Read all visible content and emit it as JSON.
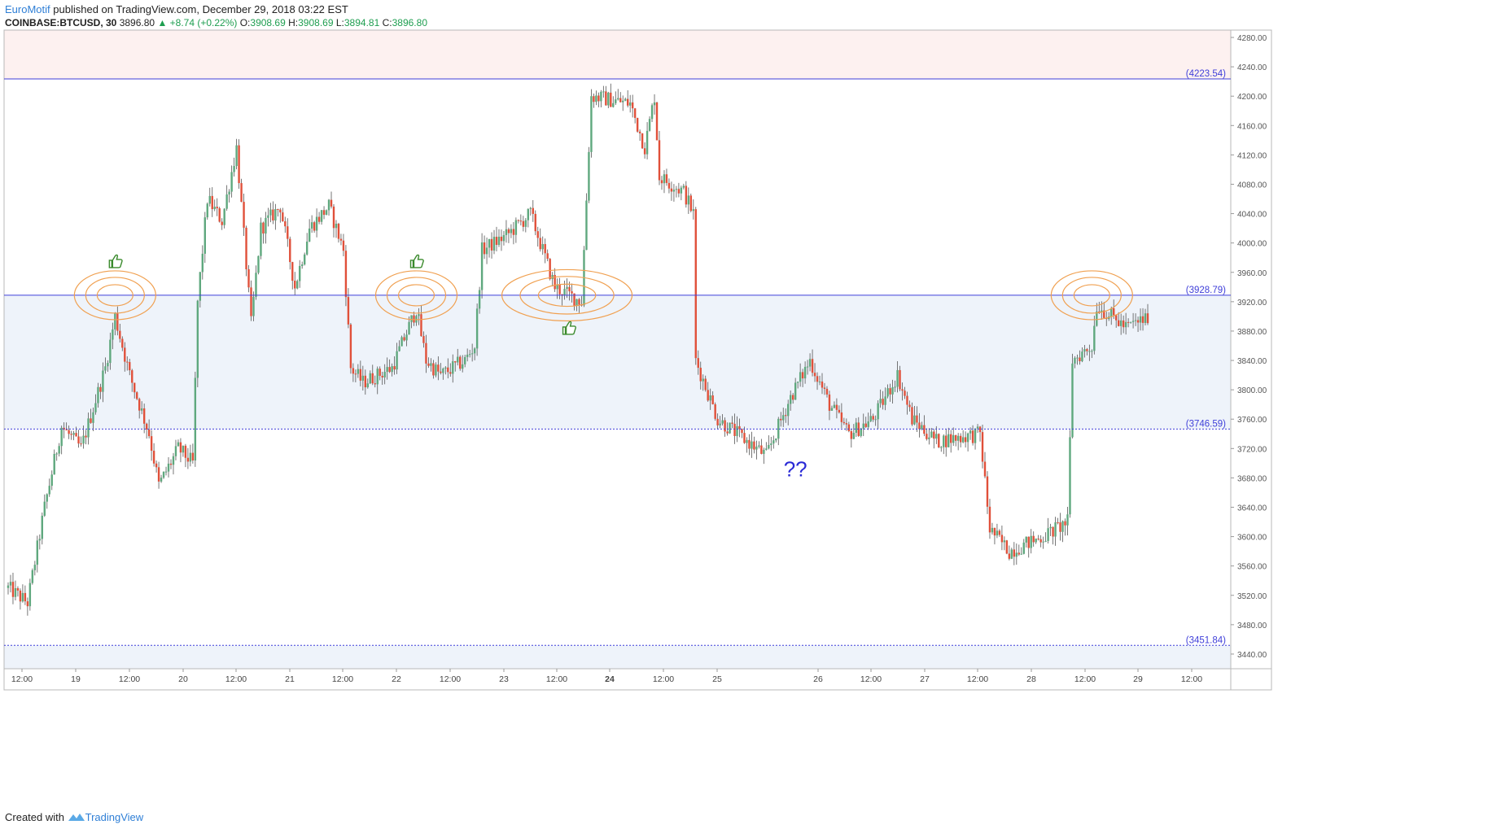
{
  "header": {
    "author": "EuroMotif",
    "published": "published on TradingView.com, December 29, 2018 03:22 EST",
    "symbol": "COINBASE:BTCUSD, 30",
    "last": "3896.80",
    "change": "▲ +8.74 (+0.22%)",
    "o_label": "O:",
    "o_value": "3908.69",
    "h_label": "H:",
    "h_value": "3908.69",
    "l_label": "L:",
    "l_value": "3894.81",
    "c_label": "C:",
    "c_value": "3896.80"
  },
  "footer": {
    "created_with": "Created with",
    "brand": "TradingView"
  },
  "colors": {
    "up": "#5fa87e",
    "down": "#e0503a",
    "level_line": "#3f3fd9",
    "zone_fill": "#eef3fa",
    "top_zone_fill": "#fdf1f0",
    "circle": "#f0a050",
    "thumb": "#3a8a2c"
  },
  "chart_data": {
    "type": "candlestick",
    "symbol": "COINBASE:BTCUSD",
    "interval": "30",
    "ylim": [
      3420,
      4290
    ],
    "y_ticks": [
      "4280.00",
      "4240.00",
      "4200.00",
      "4160.00",
      "4120.00",
      "4080.00",
      "4040.00",
      "4000.00",
      "3960.00",
      "3920.00",
      "3880.00",
      "3840.00",
      "3800.00",
      "3760.00",
      "3720.00",
      "3680.00",
      "3640.00",
      "3600.00",
      "3560.00",
      "3520.00",
      "3480.00",
      "3440.00"
    ],
    "x_ticks": [
      "12:00",
      "19",
      "12:00",
      "20",
      "12:00",
      "21",
      "12:00",
      "22",
      "12:00",
      "23",
      "12:00",
      "24",
      "12:00",
      "25",
      "26",
      "12:00",
      "27",
      "12:00",
      "28",
      "12:00",
      "29",
      "12:00"
    ],
    "x_ticks_bold": [
      "24"
    ],
    "levels": [
      {
        "label": "(4223.54)",
        "value": 4223.54,
        "style": "solid"
      },
      {
        "label": "(3928.79)",
        "value": 3928.79,
        "style": "solid"
      },
      {
        "label": "(3746.59)",
        "value": 3746.59,
        "style": "dotted"
      },
      {
        "label": "(3451.84)",
        "value": 3451.84,
        "style": "dotted"
      }
    ],
    "shaded_zones": [
      {
        "from": 4223.54,
        "to": 4290,
        "color": "top"
      },
      {
        "from": 3746.59,
        "to": 3928.79,
        "color": "zone"
      },
      {
        "from": 3420,
        "to": 3451.84,
        "color": "zone"
      }
    ],
    "path_points": [
      {
        "t": 0,
        "price": 3530
      },
      {
        "t": 8,
        "price": 3510
      },
      {
        "t": 15,
        "price": 3640
      },
      {
        "t": 22,
        "price": 3750
      },
      {
        "t": 30,
        "price": 3720
      },
      {
        "t": 40,
        "price": 3830
      },
      {
        "t": 44,
        "price": 3900
      },
      {
        "t": 50,
        "price": 3820
      },
      {
        "t": 58,
        "price": 3740
      },
      {
        "t": 62,
        "price": 3670
      },
      {
        "t": 70,
        "price": 3720
      },
      {
        "t": 76,
        "price": 3700
      },
      {
        "t": 78,
        "price": 3920
      },
      {
        "t": 82,
        "price": 4060
      },
      {
        "t": 88,
        "price": 4030
      },
      {
        "t": 94,
        "price": 4130
      },
      {
        "t": 100,
        "price": 3890
      },
      {
        "t": 104,
        "price": 4020
      },
      {
        "t": 112,
        "price": 4050
      },
      {
        "t": 118,
        "price": 3940
      },
      {
        "t": 124,
        "price": 4020
      },
      {
        "t": 132,
        "price": 4050
      },
      {
        "t": 138,
        "price": 3990
      },
      {
        "t": 141,
        "price": 3830
      },
      {
        "t": 146,
        "price": 3810
      },
      {
        "t": 158,
        "price": 3830
      },
      {
        "t": 168,
        "price": 3910
      },
      {
        "t": 172,
        "price": 3840
      },
      {
        "t": 178,
        "price": 3820
      },
      {
        "t": 188,
        "price": 3840
      },
      {
        "t": 192,
        "price": 3860
      },
      {
        "t": 195,
        "price": 3990
      },
      {
        "t": 205,
        "price": 4010
      },
      {
        "t": 215,
        "price": 4040
      },
      {
        "t": 225,
        "price": 3940
      },
      {
        "t": 236,
        "price": 3920
      },
      {
        "t": 240,
        "price": 4200
      },
      {
        "t": 256,
        "price": 4190
      },
      {
        "t": 262,
        "price": 4130
      },
      {
        "t": 266,
        "price": 4200
      },
      {
        "t": 268,
        "price": 4090
      },
      {
        "t": 278,
        "price": 4070
      },
      {
        "t": 282,
        "price": 4040
      },
      {
        "t": 283,
        "price": 3840
      },
      {
        "t": 292,
        "price": 3760
      },
      {
        "t": 312,
        "price": 3710
      },
      {
        "t": 322,
        "price": 3790
      },
      {
        "t": 330,
        "price": 3840
      },
      {
        "t": 338,
        "price": 3780
      },
      {
        "t": 346,
        "price": 3740
      },
      {
        "t": 356,
        "price": 3760
      },
      {
        "t": 366,
        "price": 3820
      },
      {
        "t": 372,
        "price": 3760
      },
      {
        "t": 382,
        "price": 3730
      },
      {
        "t": 400,
        "price": 3740
      },
      {
        "t": 404,
        "price": 3610
      },
      {
        "t": 412,
        "price": 3580
      },
      {
        "t": 426,
        "price": 3600
      },
      {
        "t": 436,
        "price": 3620
      },
      {
        "t": 438,
        "price": 3840
      },
      {
        "t": 446,
        "price": 3860
      },
      {
        "t": 448,
        "price": 3915
      },
      {
        "t": 460,
        "price": 3885
      },
      {
        "t": 468,
        "price": 3897
      }
    ],
    "annotations": [
      {
        "type": "target-circles",
        "at_t": 44,
        "price": 3928.79,
        "thumb": "above"
      },
      {
        "type": "target-circles",
        "at_t": 168,
        "price": 3928.79,
        "thumb": "above"
      },
      {
        "type": "target-ellipse",
        "at_t": 230,
        "price": 3928.79,
        "thumb": "below"
      },
      {
        "type": "target-circles",
        "at_t": 446,
        "price": 3928.79,
        "thumb": "none"
      },
      {
        "type": "text",
        "text": "??",
        "at_t": 324,
        "price": 3682
      }
    ]
  }
}
